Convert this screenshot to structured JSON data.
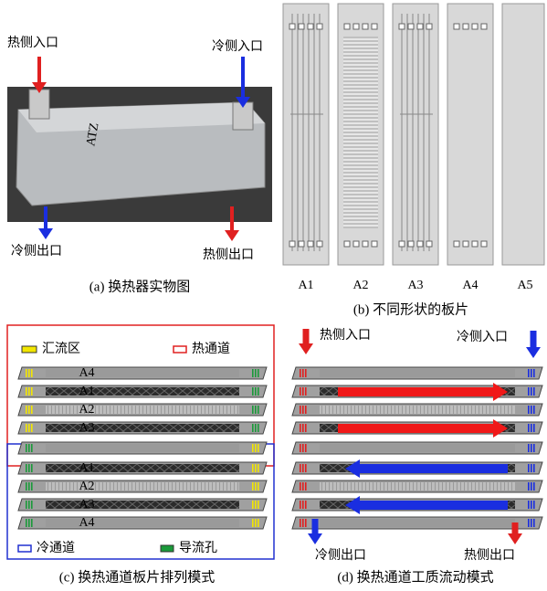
{
  "panel_a": {
    "labels": {
      "hot_in": "热侧入口",
      "cold_in": "冷侧入口",
      "cold_out": "冷侧出口",
      "hot_out": "热侧出口"
    },
    "caption": "(a) 换热器实物图"
  },
  "panel_b": {
    "plates": [
      "A1",
      "A2",
      "A3",
      "A4",
      "A5"
    ],
    "caption": "(b) 不同形状的板片"
  },
  "panel_c": {
    "legend": {
      "manifold": "汇流区",
      "hot_channel": "热通道",
      "cold_channel": "冷通道",
      "guide_hole": "导流孔"
    },
    "plates": [
      "A4",
      "A1",
      "A2",
      "A3",
      "A1",
      "A2",
      "A3",
      "A4"
    ],
    "caption": "(c) 换热通道板片排列模式"
  },
  "panel_d": {
    "labels": {
      "hot_in": "热侧入口",
      "cold_in": "冷侧入口",
      "cold_out": "冷侧出口",
      "hot_out": "热侧出口"
    },
    "caption": "(d) 换热通道工质流动模式"
  }
}
